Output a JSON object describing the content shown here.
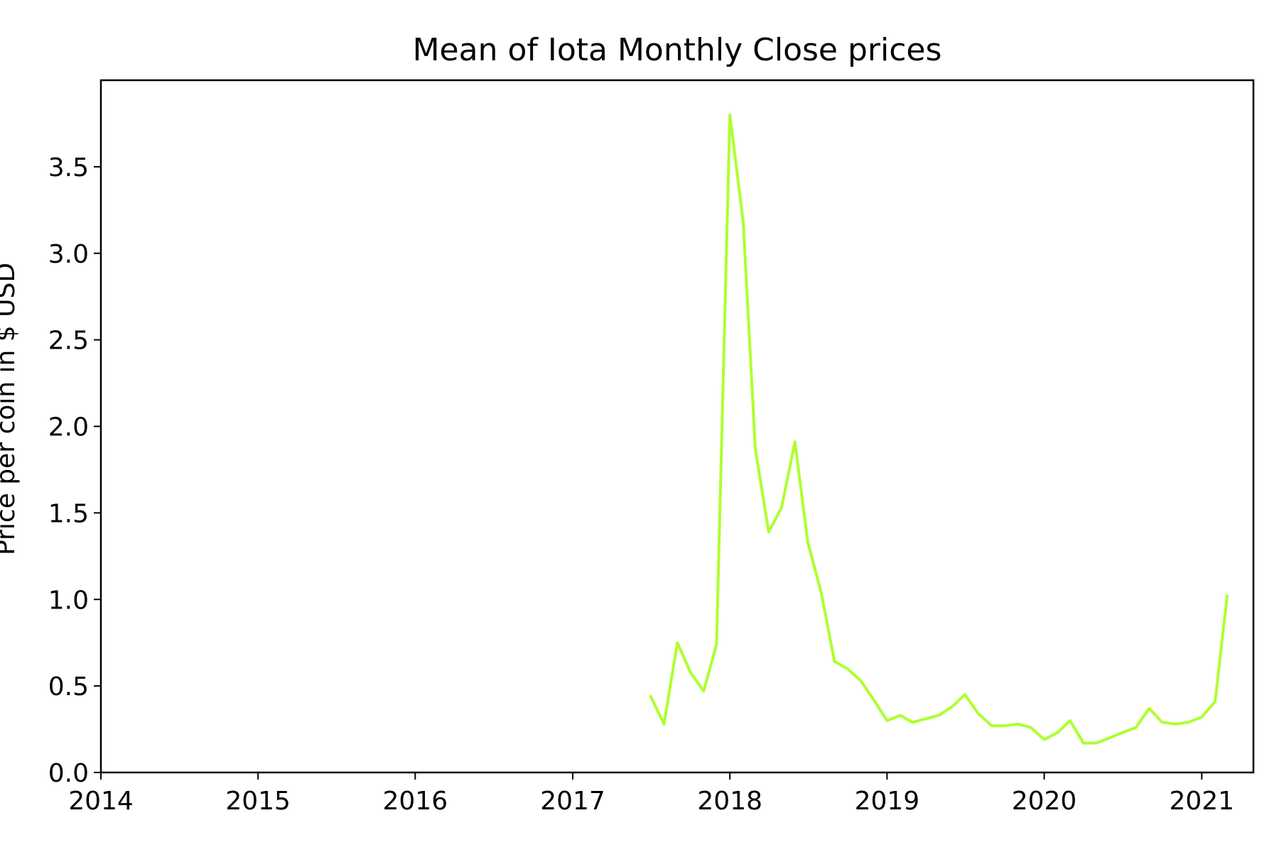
{
  "chart_data": {
    "type": "line",
    "title": "Mean of Iota Monthly Close prices",
    "xlabel": "",
    "ylabel": "Price per coin in $ USD",
    "xlim": [
      "2014-01-01",
      "2021-05-01"
    ],
    "ylim": [
      0,
      4.0
    ],
    "x_ticks": [
      "2014",
      "2015",
      "2016",
      "2017",
      "2018",
      "2019",
      "2020",
      "2021"
    ],
    "y_ticks": [
      "0.0",
      "0.5",
      "1.0",
      "1.5",
      "2.0",
      "2.5",
      "3.0",
      "3.5"
    ],
    "grid": false,
    "line_color": "#adff2f",
    "series": [
      {
        "x": [
          "2017-07",
          "2017-08",
          "2017-09",
          "2017-10",
          "2017-11",
          "2017-12",
          "2018-01",
          "2018-02",
          "2018-03",
          "2018-04",
          "2018-05",
          "2018-06",
          "2018-07",
          "2018-08",
          "2018-09",
          "2018-10",
          "2018-11",
          "2018-12",
          "2019-01",
          "2019-02",
          "2019-03",
          "2019-04",
          "2019-05",
          "2019-06",
          "2019-07",
          "2019-08",
          "2019-09",
          "2019-10",
          "2019-11",
          "2019-12",
          "2020-01",
          "2020-02",
          "2020-03",
          "2020-04",
          "2020-05",
          "2020-06",
          "2020-07",
          "2020-08",
          "2020-09",
          "2020-10",
          "2020-11",
          "2020-12",
          "2021-01",
          "2021-02",
          "2021-03"
        ],
        "values": [
          0.44,
          0.28,
          0.75,
          0.58,
          0.47,
          0.74,
          3.8,
          3.18,
          1.87,
          1.39,
          1.53,
          1.91,
          1.33,
          1.04,
          0.64,
          0.6,
          0.53,
          0.42,
          0.3,
          0.33,
          0.29,
          0.31,
          0.33,
          0.38,
          0.45,
          0.34,
          0.27,
          0.27,
          0.28,
          0.26,
          0.19,
          0.23,
          0.3,
          0.17,
          0.17,
          0.2,
          0.23,
          0.26,
          0.37,
          0.29,
          0.28,
          0.29,
          0.32,
          0.41,
          1.02
        ]
      }
    ]
  }
}
